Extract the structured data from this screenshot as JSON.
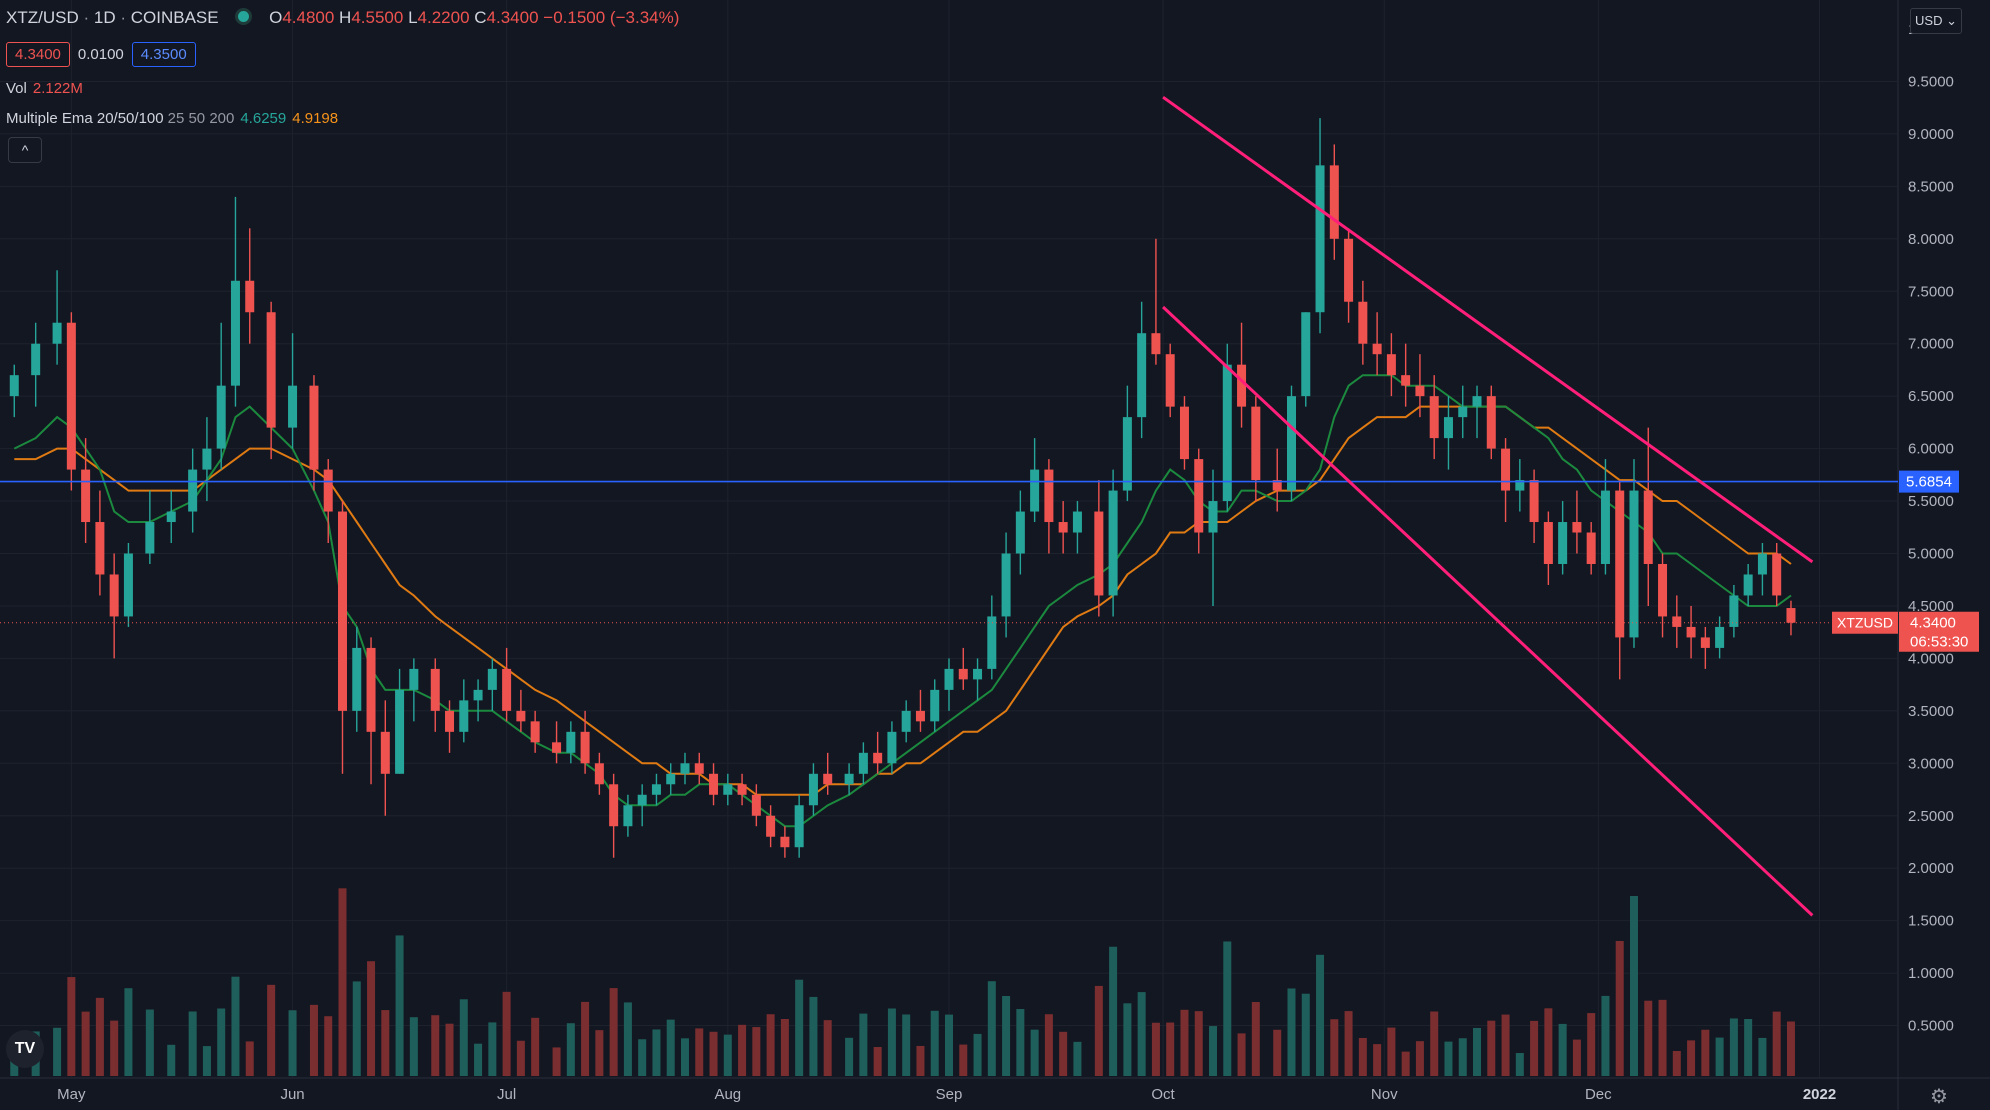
{
  "header": {
    "symbol": "XTZ/USD",
    "interval": "1D",
    "exchange": "COINBASE",
    "ohlc": {
      "o_label": "O",
      "o": "4.4800",
      "h_label": "H",
      "h": "4.5500",
      "l_label": "L",
      "l": "4.2200",
      "c_label": "C",
      "c": "4.3400",
      "change": "−0.1500 (−3.34%)"
    }
  },
  "quote": {
    "bid": "4.3400",
    "spread": "0.0100",
    "ask": "4.3500"
  },
  "volume": {
    "label": "Vol",
    "value": "2.122M"
  },
  "ema": {
    "name": "Multiple Ema 20/50/100",
    "params": "25 50 200",
    "val1": "4.6259",
    "val2": "4.9198"
  },
  "collapse_icon": "chevron-up-icon",
  "collapse_glyph": "^",
  "currency_label": "USD",
  "currency_icon": "chevron-down-icon",
  "logo_text": "TV",
  "settings_icon": "gear-icon",
  "colors": {
    "up": "#26a69a",
    "down": "#ef5350",
    "ema_short": "#1b8a3e",
    "ema_long": "#e07b13",
    "hline": "#2962ff",
    "channel": "#ff1f7a",
    "background": "#131722"
  },
  "chart_data": {
    "type": "candlestick",
    "y_ticks": [
      "9.5000",
      "9.0000",
      "8.5000",
      "8.0000",
      "7.5000",
      "7.0000",
      "6.5000",
      "6.0000",
      "5.5000",
      "5.0000",
      "4.5000",
      "4.0000",
      "3.5000",
      "3.0000",
      "2.5000",
      "2.0000",
      "1.5000",
      "1.0000",
      "0.5000"
    ],
    "y_top_label": "1",
    "x_ticks": [
      "May",
      "Jun",
      "Jul",
      "Aug",
      "Sep",
      "Oct",
      "Nov",
      "Dec",
      "2022"
    ],
    "ylim": [
      0,
      9.7
    ],
    "hline": {
      "value": 5.6854,
      "label": "5.6854"
    },
    "price_label": {
      "symbol": "XTZUSD",
      "value": "4.3400",
      "countdown": "06:53:30",
      "price": 4.34
    },
    "channel": {
      "upper": [
        [
          "2021-10-01",
          9.35
        ],
        [
          "2021-12-31",
          4.92
        ]
      ],
      "lower": [
        [
          "2021-10-01",
          7.35
        ],
        [
          "2021-12-31",
          1.55
        ]
      ]
    },
    "candles": [
      {
        "date": "2021-04-23",
        "o": 6.5,
        "h": 6.8,
        "l": 6.3,
        "c": 6.7
      },
      {
        "date": "2021-04-26",
        "o": 6.7,
        "h": 7.2,
        "l": 6.4,
        "c": 7.0
      },
      {
        "date": "2021-04-29",
        "o": 7.0,
        "h": 7.7,
        "l": 6.8,
        "c": 7.2
      },
      {
        "date": "2021-05-01",
        "o": 7.2,
        "h": 7.3,
        "l": 5.6,
        "c": 5.8
      },
      {
        "date": "2021-05-03",
        "o": 5.8,
        "h": 6.1,
        "l": 5.1,
        "c": 5.3
      },
      {
        "date": "2021-05-05",
        "o": 5.3,
        "h": 5.6,
        "l": 4.6,
        "c": 4.8
      },
      {
        "date": "2021-05-07",
        "o": 4.8,
        "h": 5.0,
        "l": 4.0,
        "c": 4.4
      },
      {
        "date": "2021-05-09",
        "o": 4.4,
        "h": 5.1,
        "l": 4.3,
        "c": 5.0
      },
      {
        "date": "2021-05-12",
        "o": 5.0,
        "h": 5.6,
        "l": 4.9,
        "c": 5.3
      },
      {
        "date": "2021-05-15",
        "o": 5.3,
        "h": 5.6,
        "l": 5.1,
        "c": 5.4
      },
      {
        "date": "2021-05-18",
        "o": 5.4,
        "h": 6.0,
        "l": 5.2,
        "c": 5.8
      },
      {
        "date": "2021-05-20",
        "o": 5.8,
        "h": 6.3,
        "l": 5.5,
        "c": 6.0
      },
      {
        "date": "2021-05-22",
        "o": 6.0,
        "h": 7.2,
        "l": 5.8,
        "c": 6.6
      },
      {
        "date": "2021-05-24",
        "o": 6.6,
        "h": 8.4,
        "l": 6.4,
        "c": 7.6
      },
      {
        "date": "2021-05-26",
        "o": 7.6,
        "h": 8.1,
        "l": 7.0,
        "c": 7.3
      },
      {
        "date": "2021-05-29",
        "o": 7.3,
        "h": 7.4,
        "l": 5.9,
        "c": 6.2
      },
      {
        "date": "2021-06-01",
        "o": 6.2,
        "h": 7.1,
        "l": 6.0,
        "c": 6.6
      },
      {
        "date": "2021-06-04",
        "o": 6.6,
        "h": 6.7,
        "l": 5.6,
        "c": 5.8
      },
      {
        "date": "2021-06-06",
        "o": 5.8,
        "h": 5.9,
        "l": 5.1,
        "c": 5.4
      },
      {
        "date": "2021-06-08",
        "o": 5.4,
        "h": 5.5,
        "l": 2.9,
        "c": 3.5
      },
      {
        "date": "2021-06-10",
        "o": 3.5,
        "h": 4.3,
        "l": 3.3,
        "c": 4.1
      },
      {
        "date": "2021-06-12",
        "o": 4.1,
        "h": 4.2,
        "l": 2.8,
        "c": 3.3
      },
      {
        "date": "2021-06-14",
        "o": 3.3,
        "h": 3.6,
        "l": 2.5,
        "c": 2.9
      },
      {
        "date": "2021-06-16",
        "o": 2.9,
        "h": 3.9,
        "l": 2.9,
        "c": 3.7
      },
      {
        "date": "2021-06-18",
        "o": 3.7,
        "h": 4.0,
        "l": 3.4,
        "c": 3.9
      },
      {
        "date": "2021-06-21",
        "o": 3.9,
        "h": 4.0,
        "l": 3.3,
        "c": 3.5
      },
      {
        "date": "2021-06-23",
        "o": 3.5,
        "h": 3.6,
        "l": 3.1,
        "c": 3.3
      },
      {
        "date": "2021-06-25",
        "o": 3.3,
        "h": 3.8,
        "l": 3.2,
        "c": 3.6
      },
      {
        "date": "2021-06-27",
        "o": 3.6,
        "h": 3.8,
        "l": 3.4,
        "c": 3.7
      },
      {
        "date": "2021-06-29",
        "o": 3.7,
        "h": 4.0,
        "l": 3.5,
        "c": 3.9
      },
      {
        "date": "2021-07-01",
        "o": 3.9,
        "h": 4.1,
        "l": 3.4,
        "c": 3.5
      },
      {
        "date": "2021-07-03",
        "o": 3.5,
        "h": 3.7,
        "l": 3.3,
        "c": 3.4
      },
      {
        "date": "2021-07-05",
        "o": 3.4,
        "h": 3.5,
        "l": 3.1,
        "c": 3.2
      },
      {
        "date": "2021-07-08",
        "o": 3.2,
        "h": 3.4,
        "l": 3.0,
        "c": 3.1
      },
      {
        "date": "2021-07-10",
        "o": 3.1,
        "h": 3.4,
        "l": 3.0,
        "c": 3.3
      },
      {
        "date": "2021-07-12",
        "o": 3.3,
        "h": 3.5,
        "l": 2.9,
        "c": 3.0
      },
      {
        "date": "2021-07-14",
        "o": 3.0,
        "h": 3.1,
        "l": 2.7,
        "c": 2.8
      },
      {
        "date": "2021-07-16",
        "o": 2.8,
        "h": 2.9,
        "l": 2.1,
        "c": 2.4
      },
      {
        "date": "2021-07-18",
        "o": 2.4,
        "h": 2.7,
        "l": 2.3,
        "c": 2.6
      },
      {
        "date": "2021-07-20",
        "o": 2.6,
        "h": 2.8,
        "l": 2.4,
        "c": 2.7
      },
      {
        "date": "2021-07-22",
        "o": 2.7,
        "h": 2.9,
        "l": 2.6,
        "c": 2.8
      },
      {
        "date": "2021-07-24",
        "o": 2.8,
        "h": 3.0,
        "l": 2.7,
        "c": 2.9
      },
      {
        "date": "2021-07-26",
        "o": 2.9,
        "h": 3.1,
        "l": 2.8,
        "c": 3.0
      },
      {
        "date": "2021-07-28",
        "o": 3.0,
        "h": 3.1,
        "l": 2.8,
        "c": 2.9
      },
      {
        "date": "2021-07-30",
        "o": 2.9,
        "h": 3.0,
        "l": 2.6,
        "c": 2.7
      },
      {
        "date": "2021-08-01",
        "o": 2.7,
        "h": 2.9,
        "l": 2.6,
        "c": 2.8
      },
      {
        "date": "2021-08-03",
        "o": 2.8,
        "h": 2.9,
        "l": 2.6,
        "c": 2.7
      },
      {
        "date": "2021-08-05",
        "o": 2.7,
        "h": 2.8,
        "l": 2.4,
        "c": 2.5
      },
      {
        "date": "2021-08-07",
        "o": 2.5,
        "h": 2.6,
        "l": 2.2,
        "c": 2.3
      },
      {
        "date": "2021-08-09",
        "o": 2.3,
        "h": 2.4,
        "l": 2.1,
        "c": 2.2
      },
      {
        "date": "2021-08-11",
        "o": 2.2,
        "h": 2.7,
        "l": 2.1,
        "c": 2.6
      },
      {
        "date": "2021-08-13",
        "o": 2.6,
        "h": 3.0,
        "l": 2.5,
        "c": 2.9
      },
      {
        "date": "2021-08-15",
        "o": 2.9,
        "h": 3.1,
        "l": 2.7,
        "c": 2.8
      },
      {
        "date": "2021-08-18",
        "o": 2.8,
        "h": 3.0,
        "l": 2.7,
        "c": 2.9
      },
      {
        "date": "2021-08-20",
        "o": 2.9,
        "h": 3.2,
        "l": 2.8,
        "c": 3.1
      },
      {
        "date": "2021-08-22",
        "o": 3.1,
        "h": 3.3,
        "l": 2.9,
        "c": 3.0
      },
      {
        "date": "2021-08-24",
        "o": 3.0,
        "h": 3.4,
        "l": 2.9,
        "c": 3.3
      },
      {
        "date": "2021-08-26",
        "o": 3.3,
        "h": 3.6,
        "l": 3.2,
        "c": 3.5
      },
      {
        "date": "2021-08-28",
        "o": 3.5,
        "h": 3.7,
        "l": 3.3,
        "c": 3.4
      },
      {
        "date": "2021-08-30",
        "o": 3.4,
        "h": 3.8,
        "l": 3.3,
        "c": 3.7
      },
      {
        "date": "2021-09-01",
        "o": 3.7,
        "h": 4.0,
        "l": 3.5,
        "c": 3.9
      },
      {
        "date": "2021-09-03",
        "o": 3.9,
        "h": 4.1,
        "l": 3.7,
        "c": 3.8
      },
      {
        "date": "2021-09-05",
        "o": 3.8,
        "h": 4.0,
        "l": 3.6,
        "c": 3.9
      },
      {
        "date": "2021-09-07",
        "o": 3.9,
        "h": 4.6,
        "l": 3.8,
        "c": 4.4
      },
      {
        "date": "2021-09-09",
        "o": 4.4,
        "h": 5.2,
        "l": 4.2,
        "c": 5.0
      },
      {
        "date": "2021-09-11",
        "o": 5.0,
        "h": 5.6,
        "l": 4.8,
        "c": 5.4
      },
      {
        "date": "2021-09-13",
        "o": 5.4,
        "h": 6.1,
        "l": 5.3,
        "c": 5.8
      },
      {
        "date": "2021-09-15",
        "o": 5.8,
        "h": 5.9,
        "l": 5.0,
        "c": 5.3
      },
      {
        "date": "2021-09-17",
        "o": 5.3,
        "h": 5.5,
        "l": 5.0,
        "c": 5.2
      },
      {
        "date": "2021-09-19",
        "o": 5.2,
        "h": 5.5,
        "l": 5.0,
        "c": 5.4
      },
      {
        "date": "2021-09-22",
        "o": 5.4,
        "h": 5.7,
        "l": 4.4,
        "c": 4.6
      },
      {
        "date": "2021-09-24",
        "o": 4.6,
        "h": 5.8,
        "l": 4.4,
        "c": 5.6
      },
      {
        "date": "2021-09-26",
        "o": 5.6,
        "h": 6.6,
        "l": 5.5,
        "c": 6.3
      },
      {
        "date": "2021-09-28",
        "o": 6.3,
        "h": 7.4,
        "l": 6.1,
        "c": 7.1
      },
      {
        "date": "2021-09-30",
        "o": 7.1,
        "h": 8.0,
        "l": 6.8,
        "c": 6.9
      },
      {
        "date": "2021-10-02",
        "o": 6.9,
        "h": 7.0,
        "l": 6.3,
        "c": 6.4
      },
      {
        "date": "2021-10-04",
        "o": 6.4,
        "h": 6.5,
        "l": 5.8,
        "c": 5.9
      },
      {
        "date": "2021-10-06",
        "o": 5.9,
        "h": 6.0,
        "l": 5.0,
        "c": 5.2
      },
      {
        "date": "2021-10-08",
        "o": 5.2,
        "h": 5.8,
        "l": 4.5,
        "c": 5.5
      },
      {
        "date": "2021-10-10",
        "o": 5.5,
        "h": 7.0,
        "l": 5.4,
        "c": 6.8
      },
      {
        "date": "2021-10-12",
        "o": 6.8,
        "h": 7.2,
        "l": 6.2,
        "c": 6.4
      },
      {
        "date": "2021-10-14",
        "o": 6.4,
        "h": 6.5,
        "l": 5.5,
        "c": 5.7
      },
      {
        "date": "2021-10-17",
        "o": 5.7,
        "h": 6.0,
        "l": 5.4,
        "c": 5.6
      },
      {
        "date": "2021-10-19",
        "o": 5.6,
        "h": 6.6,
        "l": 5.5,
        "c": 6.5
      },
      {
        "date": "2021-10-21",
        "o": 6.5,
        "h": 7.3,
        "l": 6.4,
        "c": 7.3
      },
      {
        "date": "2021-10-23",
        "o": 7.3,
        "h": 9.15,
        "l": 7.1,
        "c": 8.7
      },
      {
        "date": "2021-10-25",
        "o": 8.7,
        "h": 8.9,
        "l": 7.8,
        "c": 8.0
      },
      {
        "date": "2021-10-27",
        "o": 8.0,
        "h": 8.1,
        "l": 7.2,
        "c": 7.4
      },
      {
        "date": "2021-10-29",
        "o": 7.4,
        "h": 7.6,
        "l": 6.8,
        "c": 7.0
      },
      {
        "date": "2021-10-31",
        "o": 7.0,
        "h": 7.3,
        "l": 6.7,
        "c": 6.9
      },
      {
        "date": "2021-11-02",
        "o": 6.9,
        "h": 7.1,
        "l": 6.5,
        "c": 6.7
      },
      {
        "date": "2021-11-04",
        "o": 6.7,
        "h": 7.0,
        "l": 6.4,
        "c": 6.6
      },
      {
        "date": "2021-11-06",
        "o": 6.6,
        "h": 6.9,
        "l": 6.3,
        "c": 6.5
      },
      {
        "date": "2021-11-08",
        "o": 6.5,
        "h": 6.7,
        "l": 5.9,
        "c": 6.1
      },
      {
        "date": "2021-11-10",
        "o": 6.1,
        "h": 6.5,
        "l": 5.8,
        "c": 6.3
      },
      {
        "date": "2021-11-12",
        "o": 6.3,
        "h": 6.6,
        "l": 6.1,
        "c": 6.4
      },
      {
        "date": "2021-11-14",
        "o": 6.4,
        "h": 6.6,
        "l": 6.1,
        "c": 6.5
      },
      {
        "date": "2021-11-16",
        "o": 6.5,
        "h": 6.6,
        "l": 5.9,
        "c": 6.0
      },
      {
        "date": "2021-11-18",
        "o": 6.0,
        "h": 6.1,
        "l": 5.3,
        "c": 5.6
      },
      {
        "date": "2021-11-20",
        "o": 5.6,
        "h": 5.9,
        "l": 5.4,
        "c": 5.7
      },
      {
        "date": "2021-11-22",
        "o": 5.7,
        "h": 5.8,
        "l": 5.1,
        "c": 5.3
      },
      {
        "date": "2021-11-24",
        "o": 5.3,
        "h": 5.4,
        "l": 4.7,
        "c": 4.9
      },
      {
        "date": "2021-11-26",
        "o": 4.9,
        "h": 5.5,
        "l": 4.8,
        "c": 5.3
      },
      {
        "date": "2021-11-28",
        "o": 5.3,
        "h": 5.6,
        "l": 5.0,
        "c": 5.2
      },
      {
        "date": "2021-11-30",
        "o": 5.2,
        "h": 5.3,
        "l": 4.8,
        "c": 4.9
      },
      {
        "date": "2021-12-02",
        "o": 4.9,
        "h": 5.9,
        "l": 4.8,
        "c": 5.6
      },
      {
        "date": "2021-12-04",
        "o": 5.6,
        "h": 5.7,
        "l": 3.8,
        "c": 4.2
      },
      {
        "date": "2021-12-06",
        "o": 4.2,
        "h": 5.9,
        "l": 4.1,
        "c": 5.6
      },
      {
        "date": "2021-12-08",
        "o": 5.6,
        "h": 6.2,
        "l": 4.5,
        "c": 4.9
      },
      {
        "date": "2021-12-10",
        "o": 4.9,
        "h": 5.0,
        "l": 4.2,
        "c": 4.4
      },
      {
        "date": "2021-12-12",
        "o": 4.4,
        "h": 4.6,
        "l": 4.1,
        "c": 4.3
      },
      {
        "date": "2021-12-14",
        "o": 4.3,
        "h": 4.5,
        "l": 4.0,
        "c": 4.2
      },
      {
        "date": "2021-12-16",
        "o": 4.2,
        "h": 4.3,
        "l": 3.9,
        "c": 4.1
      },
      {
        "date": "2021-12-18",
        "o": 4.1,
        "h": 4.4,
        "l": 4.0,
        "c": 4.3
      },
      {
        "date": "2021-12-20",
        "o": 4.3,
        "h": 4.7,
        "l": 4.2,
        "c": 4.6
      },
      {
        "date": "2021-12-22",
        "o": 4.6,
        "h": 4.9,
        "l": 4.5,
        "c": 4.8
      },
      {
        "date": "2021-12-24",
        "o": 4.8,
        "h": 5.1,
        "l": 4.6,
        "c": 5.0
      },
      {
        "date": "2021-12-26",
        "o": 5.0,
        "h": 5.1,
        "l": 4.5,
        "c": 4.6
      },
      {
        "date": "2021-12-28",
        "o": 4.48,
        "h": 4.55,
        "l": 4.22,
        "c": 4.34
      }
    ],
    "volume_ylim": [
      0,
      2.6
    ],
    "ema_20": [
      6.0,
      6.1,
      6.3,
      6.2,
      6.0,
      5.8,
      5.4,
      5.3,
      5.3,
      5.4,
      5.5,
      5.7,
      5.9,
      6.3,
      6.4,
      6.2,
      6.0,
      5.6,
      5.3,
      4.5,
      4.3,
      3.9,
      3.7,
      3.7,
      3.7,
      3.6,
      3.5,
      3.5,
      3.5,
      3.5,
      3.4,
      3.3,
      3.2,
      3.1,
      3.1,
      3.0,
      2.9,
      2.7,
      2.6,
      2.6,
      2.6,
      2.7,
      2.7,
      2.8,
      2.8,
      2.8,
      2.7,
      2.6,
      2.5,
      2.4,
      2.4,
      2.5,
      2.6,
      2.7,
      2.8,
      2.9,
      3.0,
      3.1,
      3.2,
      3.3,
      3.4,
      3.5,
      3.6,
      3.7,
      3.9,
      4.1,
      4.3,
      4.5,
      4.6,
      4.7,
      4.8,
      4.9,
      5.1,
      5.3,
      5.6,
      5.8,
      5.7,
      5.5,
      5.4,
      5.4,
      5.6,
      5.6,
      5.5,
      5.5,
      5.6,
      5.8,
      6.3,
      6.6,
      6.7,
      6.7,
      6.7,
      6.6,
      6.6,
      6.6,
      6.5,
      6.4,
      6.4,
      6.4,
      6.4,
      6.3,
      6.2,
      6.1,
      5.9,
      5.8,
      5.6,
      5.5,
      5.4,
      5.3,
      5.2,
      5.0,
      5.0,
      4.9,
      4.8,
      4.7,
      4.6,
      4.5,
      4.5,
      4.5,
      4.6,
      4.6,
      4.6
    ],
    "ema_50": [
      5.9,
      5.9,
      6.0,
      6.0,
      5.9,
      5.8,
      5.7,
      5.6,
      5.6,
      5.6,
      5.6,
      5.7,
      5.8,
      5.9,
      6.0,
      6.0,
      5.9,
      5.8,
      5.7,
      5.5,
      5.3,
      5.1,
      4.9,
      4.7,
      4.6,
      4.4,
      4.3,
      4.2,
      4.1,
      4.0,
      3.9,
      3.8,
      3.7,
      3.6,
      3.5,
      3.4,
      3.3,
      3.2,
      3.1,
      3.0,
      3.0,
      2.9,
      2.9,
      2.9,
      2.8,
      2.8,
      2.8,
      2.7,
      2.7,
      2.7,
      2.7,
      2.7,
      2.8,
      2.8,
      2.8,
      2.9,
      2.9,
      3.0,
      3.0,
      3.1,
      3.2,
      3.3,
      3.3,
      3.4,
      3.5,
      3.7,
      3.9,
      4.1,
      4.3,
      4.4,
      4.5,
      4.6,
      4.8,
      4.9,
      5.0,
      5.2,
      5.2,
      5.3,
      5.3,
      5.3,
      5.4,
      5.5,
      5.6,
      5.6,
      5.6,
      5.7,
      5.9,
      6.1,
      6.2,
      6.3,
      6.3,
      6.3,
      6.4,
      6.4,
      6.4,
      6.4,
      6.4,
      6.4,
      6.4,
      6.3,
      6.2,
      6.2,
      6.1,
      6.0,
      5.9,
      5.8,
      5.7,
      5.7,
      5.6,
      5.5,
      5.5,
      5.4,
      5.3,
      5.2,
      5.1,
      5.0,
      5.0,
      5.0,
      4.9,
      4.9,
      4.9
    ]
  }
}
